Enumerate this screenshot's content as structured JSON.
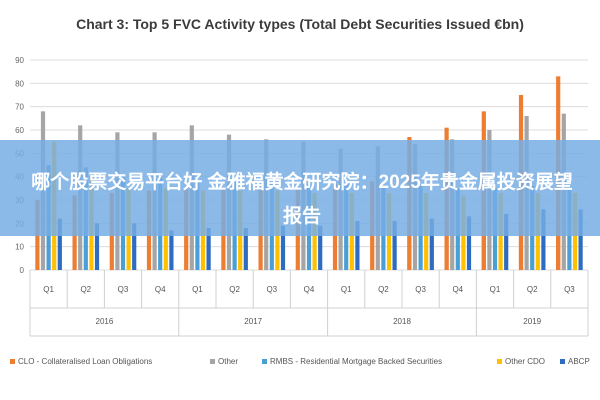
{
  "chart_data": {
    "type": "bar",
    "title": "Chart 3: Top 5 FVC Activity types (Total Debt Securities Issued €bn)",
    "categories": [
      "Q1",
      "Q2",
      "Q3",
      "Q4",
      "Q1",
      "Q2",
      "Q3",
      "Q4",
      "Q1",
      "Q2",
      "Q3",
      "Q4",
      "Q1",
      "Q2",
      "Q3"
    ],
    "years": [
      "2016",
      "2017",
      "2018",
      "2019"
    ],
    "year_spans": [
      4,
      4,
      4,
      3
    ],
    "ylim": [
      0,
      90
    ],
    "yticks": [
      "0",
      "10",
      "20",
      "30",
      "40",
      "50",
      "60",
      "70",
      "80",
      "90"
    ],
    "grid": true,
    "legend_position": "bottom",
    "series": [
      {
        "name": "CLO - Collateralised Loan Obligations",
        "color": "#ed7d31",
        "values": [
          30,
          32,
          33,
          34,
          35,
          35,
          35,
          35,
          37,
          38,
          39,
          40,
          42,
          45,
          47
        ]
      },
      {
        "name": "Other",
        "color": "#a5a5a5",
        "values": [
          68,
          62,
          59,
          59,
          62,
          58,
          56,
          55,
          52,
          53,
          54,
          56,
          60,
          66,
          67
        ]
      },
      {
        "name": "RMBS - Residential Mortgage Backed Securities",
        "color": "#4aa0d6",
        "values": [
          45,
          44,
          40,
          40,
          38,
          38,
          37,
          37,
          37,
          36,
          36,
          35,
          35,
          36,
          35
        ]
      },
      {
        "name": "Other CDO",
        "color": "#ffc000",
        "values": [
          55,
          40,
          35,
          35,
          34,
          34,
          34,
          33,
          33,
          33,
          33,
          32,
          33,
          33,
          33
        ]
      },
      {
        "name": "ABCP",
        "color": "#2e6cc1",
        "values": [
          22,
          20,
          20,
          17,
          18,
          18,
          19,
          19,
          21,
          21,
          22,
          23,
          24,
          26,
          26
        ]
      }
    ],
    "overlay_series": [
      {
        "name": "CLO - Collateralised Loan Obligations",
        "color": "#ed7d31",
        "values": [
          null,
          null,
          null,
          null,
          null,
          null,
          null,
          null,
          null,
          null,
          57,
          61,
          68,
          75,
          83
        ]
      }
    ]
  },
  "overlay": {
    "text": "哪个股票交易平台好 金雅福黄金研究院：2025年贵金属投资展望报告"
  },
  "legend_items": [
    {
      "label": "CLO - Collateralised Loan Obligations",
      "color": "#ed7d31"
    },
    {
      "label": "Other",
      "color": "#a5a5a5"
    },
    {
      "label": "RMBS - Residential Mortgage Backed Securities",
      "color": "#4aa0d6"
    },
    {
      "label": "Other CDO",
      "color": "#ffc000"
    },
    {
      "label": "ABCP",
      "color": "#2e6cc1"
    }
  ]
}
